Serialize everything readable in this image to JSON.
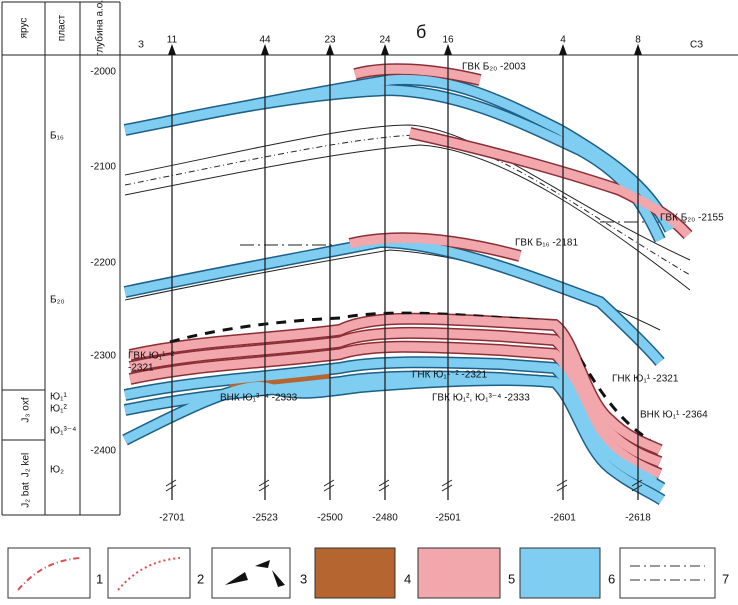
{
  "header": {
    "columns": [
      "ярус",
      "пласт",
      "глубина а.о."
    ],
    "west": "З",
    "east": "СЗ",
    "section": "б"
  },
  "wells": [
    {
      "name": "11",
      "bottom": "-2701"
    },
    {
      "name": "44",
      "bottom": "-2523"
    },
    {
      "name": "23",
      "bottom": "-2500"
    },
    {
      "name": "24",
      "bottom": "-2480"
    },
    {
      "name": "16",
      "bottom": "-2501"
    },
    {
      "name": "4",
      "bottom": "-2601"
    },
    {
      "name": "8",
      "bottom": "-2618"
    }
  ],
  "depths": [
    "-2000",
    "-2100",
    "-2200",
    "-2300",
    "-2400"
  ],
  "strata": [
    "Б₁₆",
    "Б₂₀",
    "Ю₁¹",
    "Ю₁²",
    "Ю₁³⁻⁴",
    "Ю₂"
  ],
  "stages": [
    "J₃ oxf",
    "J₂ kel",
    "J₂ bat"
  ],
  "contacts": [
    "ГВК Б₂₀ -2003",
    "ГВК Б₂₀ -2155",
    "ГВК Б₁₆ -2181",
    "ГВК Ю₁¹⁻²",
    "-2321",
    "ГНК Ю₁¹⁻² -2321",
    "ГНК Ю₁¹ -2321",
    "ВНК Ю₁³⁻⁴ -2333",
    "ГВК Ю₁², Ю₁³⁻⁴ -2333",
    "ВНК Ю₁¹ -2364"
  ],
  "legend": [
    "1",
    "2",
    "3",
    "4",
    "5",
    "6",
    "7"
  ]
}
